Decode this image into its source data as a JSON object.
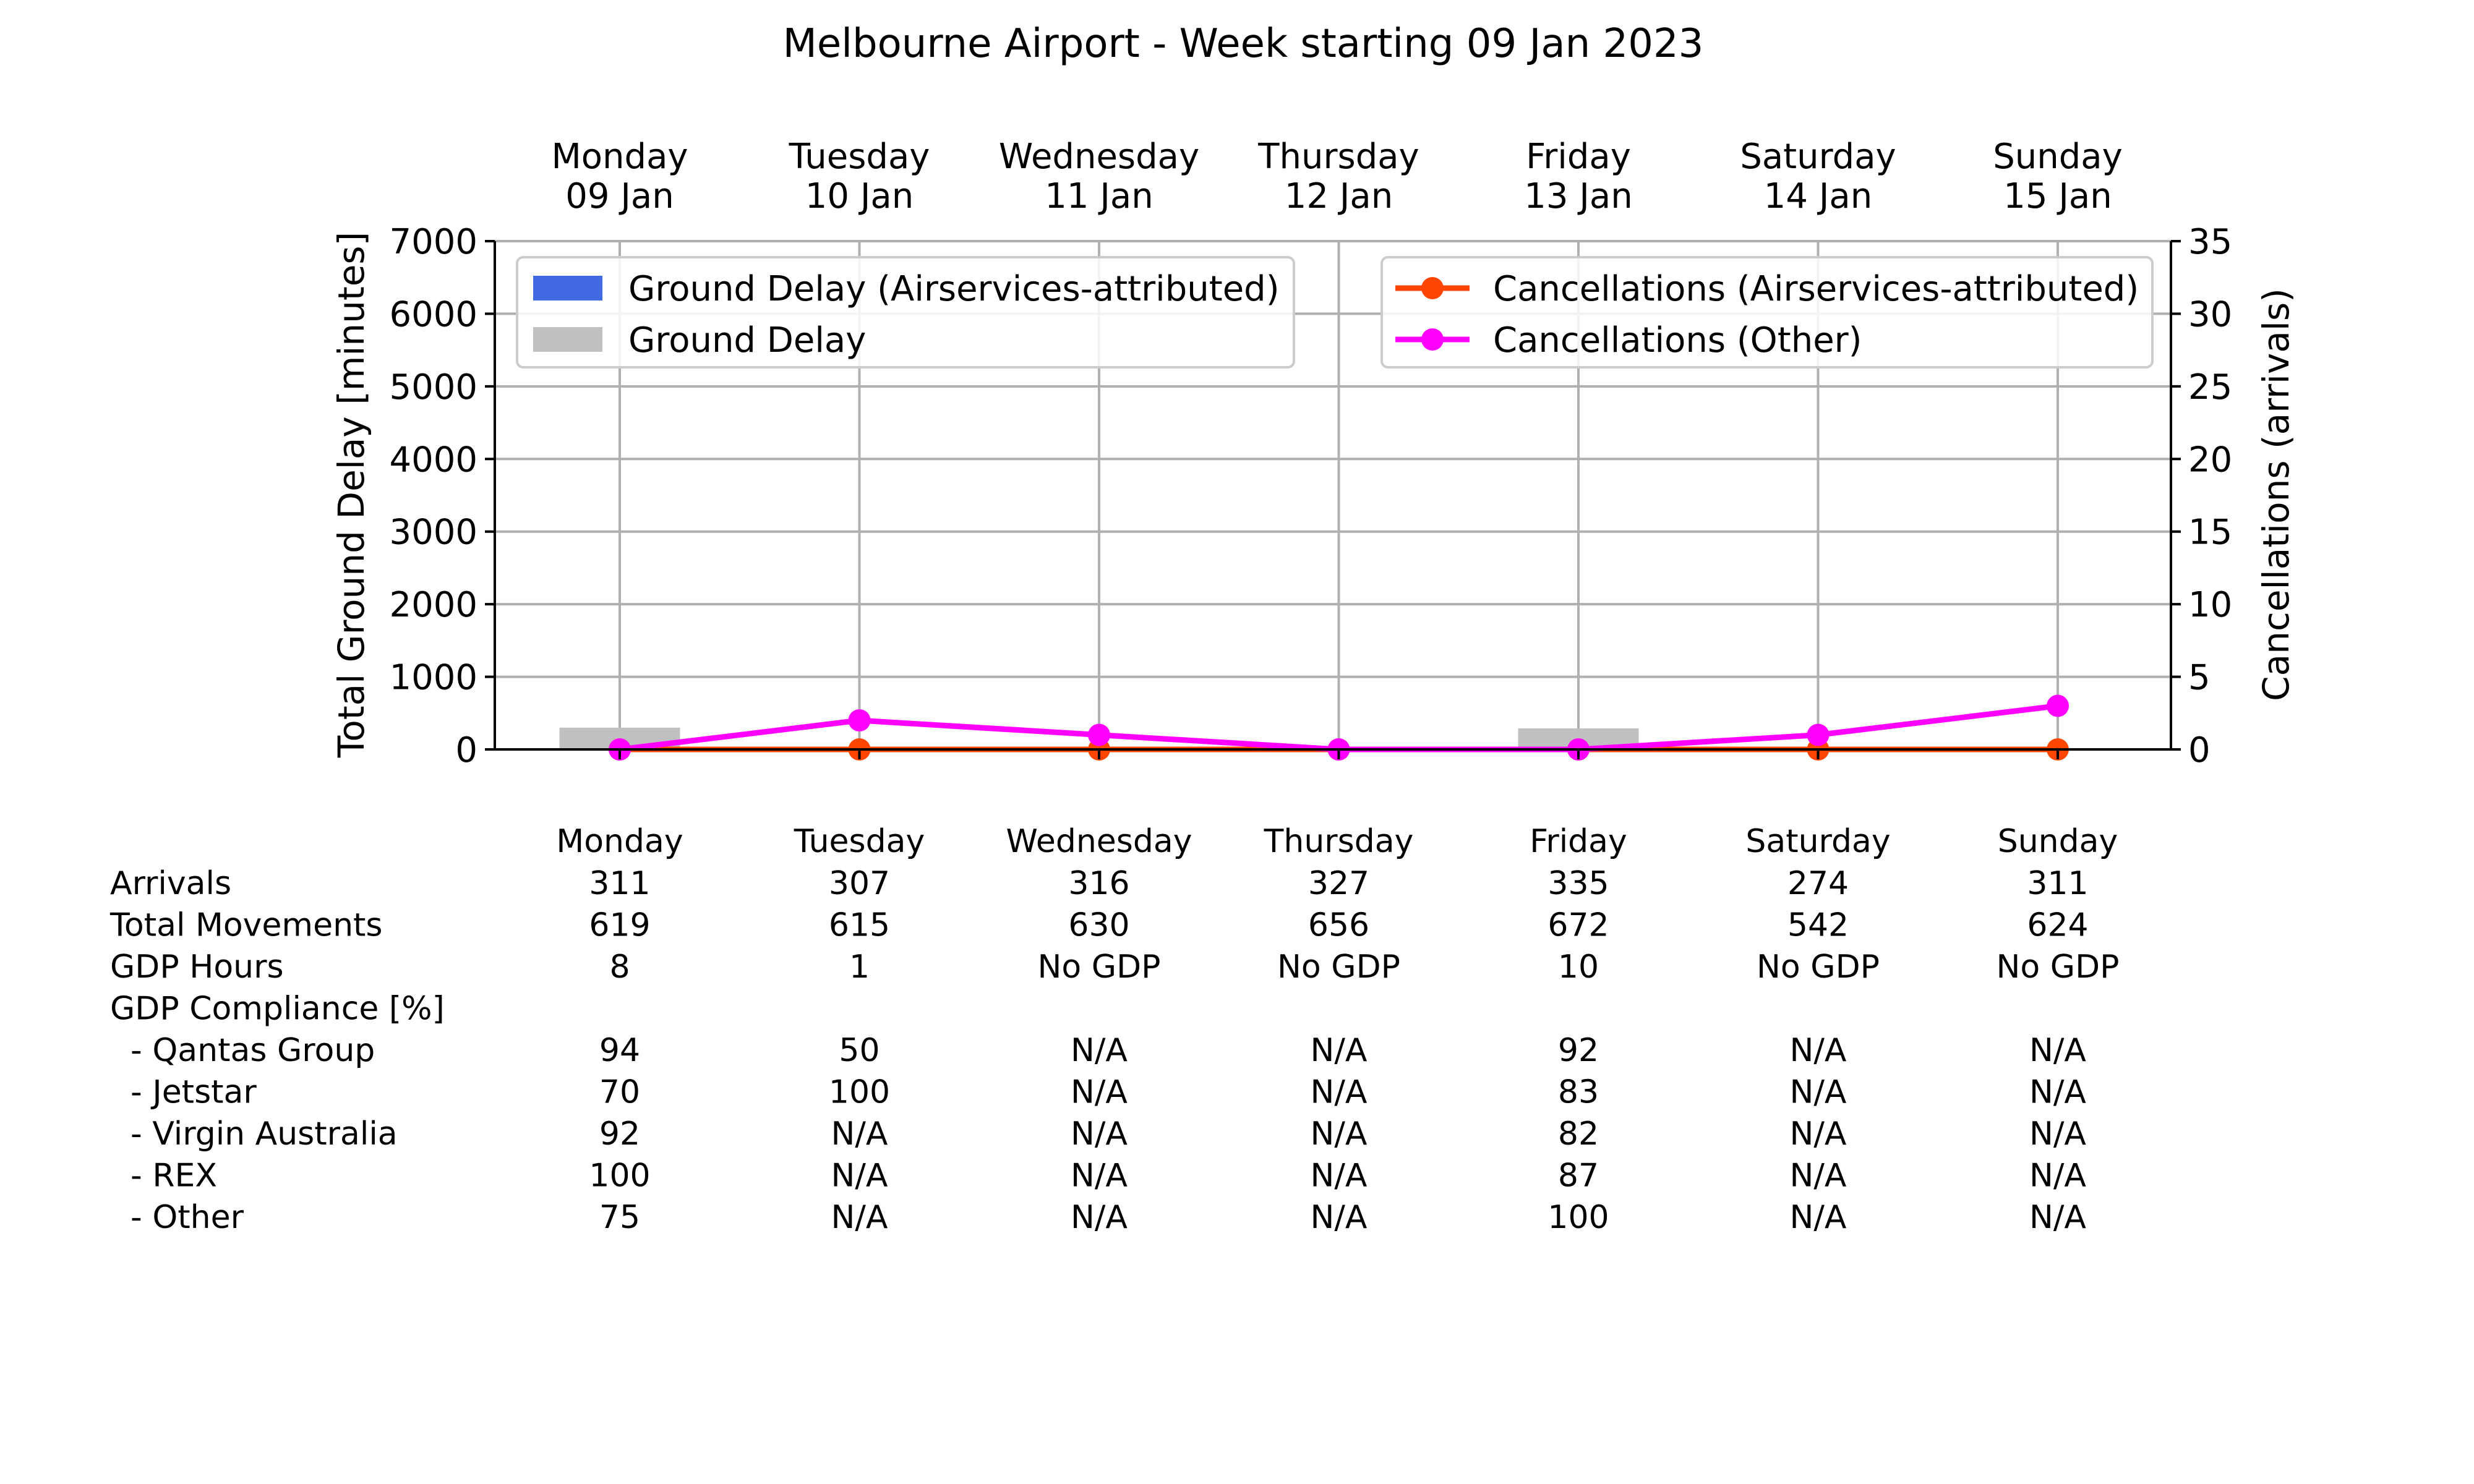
{
  "chart_data": {
    "type": "bar",
    "title": "Melbourne Airport - Week starting 09 Jan 2023",
    "categories": [
      {
        "day": "Monday",
        "date": "09 Jan"
      },
      {
        "day": "Tuesday",
        "date": "10 Jan"
      },
      {
        "day": "Wednesday",
        "date": "11 Jan"
      },
      {
        "day": "Thursday",
        "date": "12 Jan"
      },
      {
        "day": "Friday",
        "date": "13 Jan"
      },
      {
        "day": "Saturday",
        "date": "14 Jan"
      },
      {
        "day": "Sunday",
        "date": "15 Jan"
      }
    ],
    "ylabel": "Total Ground Delay [minutes]",
    "ylim": [
      0,
      7000
    ],
    "yticks": [
      0,
      1000,
      2000,
      3000,
      4000,
      5000,
      6000,
      7000
    ],
    "y2label": "Cancellations (arrivals)",
    "y2lim": [
      0,
      35
    ],
    "y2ticks": [
      0,
      5,
      10,
      15,
      20,
      25,
      30,
      35
    ],
    "grid": true,
    "series": [
      {
        "name": "Ground Delay (Airservices-attributed)",
        "kind": "bar",
        "axis": "left",
        "color": "#4169e1",
        "values": [
          0,
          0,
          0,
          0,
          0,
          0,
          0
        ]
      },
      {
        "name": "Ground Delay",
        "kind": "bar",
        "axis": "left",
        "color": "#c0c0c0",
        "values": [
          300,
          0,
          0,
          0,
          290,
          0,
          0
        ]
      },
      {
        "name": "Cancellations (Airservices-attributed)",
        "kind": "line",
        "axis": "right",
        "color": "#ff4500",
        "values": [
          0,
          0,
          0,
          0,
          0,
          0,
          0
        ]
      },
      {
        "name": "Cancellations (Other)",
        "kind": "line",
        "axis": "right",
        "color": "#ff00ff",
        "values": [
          0,
          2,
          1,
          0,
          0,
          1,
          3
        ]
      }
    ],
    "legend_left_position": "top-left",
    "legend_right_position": "top-right",
    "table": {
      "header": [
        "Monday",
        "Tuesday",
        "Wednesday",
        "Thursday",
        "Friday",
        "Saturday",
        "Sunday"
      ],
      "rows": [
        {
          "label": "Arrivals",
          "values": [
            "311",
            "307",
            "316",
            "327",
            "335",
            "274",
            "311"
          ]
        },
        {
          "label": "Total Movements",
          "values": [
            "619",
            "615",
            "630",
            "656",
            "672",
            "542",
            "624"
          ]
        },
        {
          "label": "GDP Hours",
          "values": [
            "8",
            "1",
            "No GDP",
            "No GDP",
            "10",
            "No GDP",
            "No GDP"
          ]
        },
        {
          "label": "GDP Compliance [%]",
          "values": [
            "",
            "",
            "",
            "",
            "",
            "",
            ""
          ]
        },
        {
          "label": "  - Qantas Group",
          "values": [
            "94",
            "50",
            "N/A",
            "N/A",
            "92",
            "N/A",
            "N/A"
          ]
        },
        {
          "label": "  - Jetstar",
          "values": [
            "70",
            "100",
            "N/A",
            "N/A",
            "83",
            "N/A",
            "N/A"
          ]
        },
        {
          "label": "  - Virgin Australia",
          "values": [
            "92",
            "N/A",
            "N/A",
            "N/A",
            "82",
            "N/A",
            "N/A"
          ]
        },
        {
          "label": "  - REX",
          "values": [
            "100",
            "N/A",
            "N/A",
            "N/A",
            "87",
            "N/A",
            "N/A"
          ]
        },
        {
          "label": "  - Other",
          "values": [
            "75",
            "N/A",
            "N/A",
            "N/A",
            "100",
            "N/A",
            "N/A"
          ]
        }
      ]
    }
  }
}
